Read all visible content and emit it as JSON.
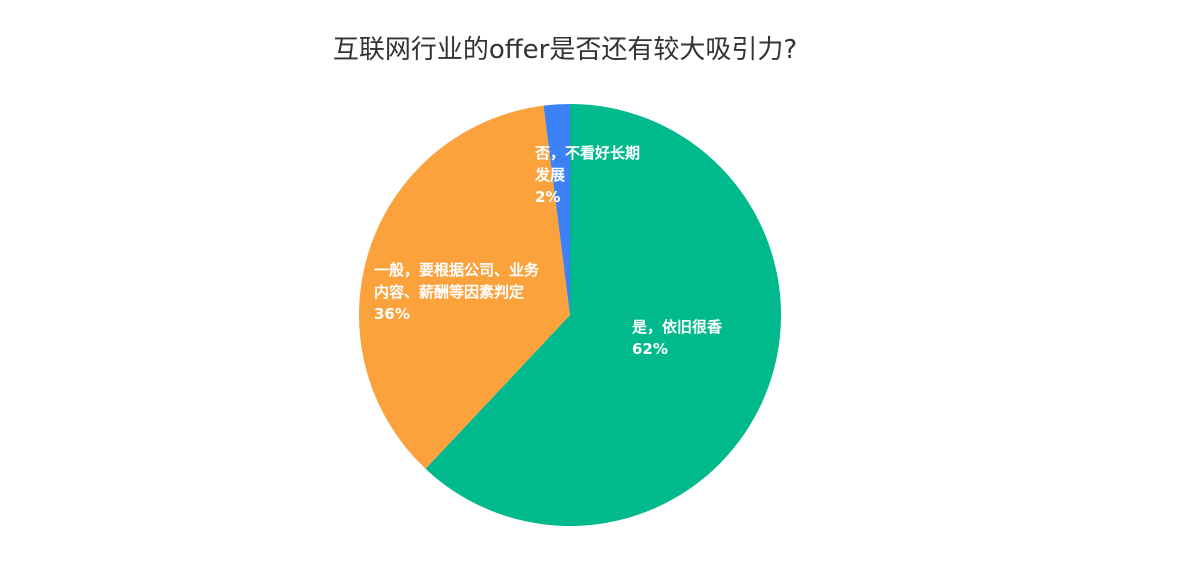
{
  "chart_data": {
    "type": "pie",
    "title": "互联网行业的offer是否还有较大吸引力?",
    "categories": [
      "是，依旧很香",
      "一般，要根据公司、业务内容、薪酬等因素判定",
      "否，不看好长期发展"
    ],
    "values": [
      62,
      36,
      2
    ],
    "value_labels": [
      "62%",
      "36%",
      "2%"
    ],
    "colors": [
      "#00b98d",
      "#fba23d",
      "#3b82f6"
    ]
  }
}
